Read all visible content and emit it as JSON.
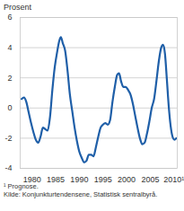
{
  "chart_data": {
    "type": "line",
    "ylabel": "Prosent",
    "notes": [
      "¹ Prognose.",
      "Kilde: Konjunkturtendensene, Statistisk sentralbyrå."
    ],
    "x": [
      1977.8,
      1978.3,
      1978.8,
      1979.3,
      1979.8,
      1980.3,
      1980.8,
      1981.3,
      1981.8,
      1982.3,
      1982.8,
      1983.3,
      1983.8,
      1984.3,
      1984.8,
      1985.3,
      1985.8,
      1986.1,
      1986.5,
      1987.0,
      1987.5,
      1988.0,
      1988.5,
      1989.0,
      1989.5,
      1990.0,
      1990.5,
      1991.0,
      1991.5,
      1992.0,
      1992.5,
      1993.0,
      1993.5,
      1994.0,
      1994.5,
      1995.0,
      1995.5,
      1996.0,
      1996.5,
      1997.0,
      1997.5,
      1998.0,
      1998.4,
      1998.8,
      1999.3,
      1999.8,
      2000.3,
      2000.8,
      2001.3,
      2001.8,
      2002.3,
      2002.8,
      2003.3,
      2003.8,
      2004.3,
      2004.8,
      2005.3,
      2005.8,
      2006.3,
      2006.8,
      2007.3,
      2007.7,
      2008.1,
      2008.5,
      2008.9,
      2009.3,
      2009.7,
      2010.1,
      2010.5
    ],
    "values": [
      0.6,
      0.7,
      0.4,
      -0.3,
      -1.0,
      -1.6,
      -2.1,
      -2.3,
      -1.9,
      -1.3,
      -1.4,
      -1.5,
      -0.6,
      1.2,
      2.7,
      3.7,
      4.5,
      4.7,
      4.3,
      3.8,
      2.5,
      0.9,
      -0.2,
      -1.3,
      -2.2,
      -2.9,
      -3.3,
      -3.6,
      -3.5,
      -3.1,
      -3.1,
      -3.2,
      -2.6,
      -1.9,
      -1.3,
      -1.1,
      -1.0,
      -1.1,
      -0.8,
      0.4,
      1.4,
      2.2,
      2.3,
      1.8,
      1.4,
      1.4,
      1.2,
      0.9,
      0.3,
      -0.5,
      -1.3,
      -2.0,
      -2.4,
      -2.3,
      -1.7,
      -0.9,
      0.0,
      0.6,
      1.8,
      3.1,
      4.0,
      4.2,
      3.6,
      1.9,
      0.1,
      -1.2,
      -1.9,
      -2.1,
      -2.0
    ],
    "color": "#1f5fa8",
    "xlim": [
      1977.5,
      2010.7
    ],
    "xticks": [
      1980,
      1985,
      1990,
      1995,
      2000,
      2005,
      {
        "value": 2010,
        "label": "2010¹"
      }
    ],
    "ylim": [
      -4,
      6
    ],
    "yticks": [
      -4,
      -2,
      0,
      2,
      4,
      6
    ],
    "grid": true
  }
}
